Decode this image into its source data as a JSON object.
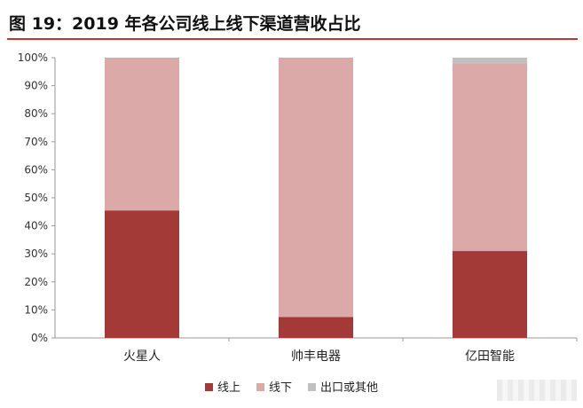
{
  "title": "图 19：2019 年各公司线上线下渠道营收占比",
  "colors": {
    "online": "#a33a37",
    "offline": "#dba9a8",
    "export": "#c0c0c0",
    "title_rule": "#c0392b"
  },
  "chart_data": {
    "type": "bar",
    "stacked": true,
    "categories": [
      "火星人",
      "帅丰电器",
      "亿田智能"
    ],
    "series": [
      {
        "name": "线上",
        "values": [
          45.5,
          7.5,
          31.0
        ]
      },
      {
        "name": "线下",
        "values": [
          54.5,
          92.5,
          67.0
        ]
      },
      {
        "name": "出口或其他",
        "values": [
          0,
          0,
          2.0
        ]
      }
    ],
    "ylim": [
      0,
      100
    ],
    "yticks": [
      "0%",
      "10%",
      "20%",
      "30%",
      "40%",
      "50%",
      "60%",
      "70%",
      "80%",
      "90%",
      "100%"
    ],
    "legend_position": "bottom",
    "grid": false
  }
}
